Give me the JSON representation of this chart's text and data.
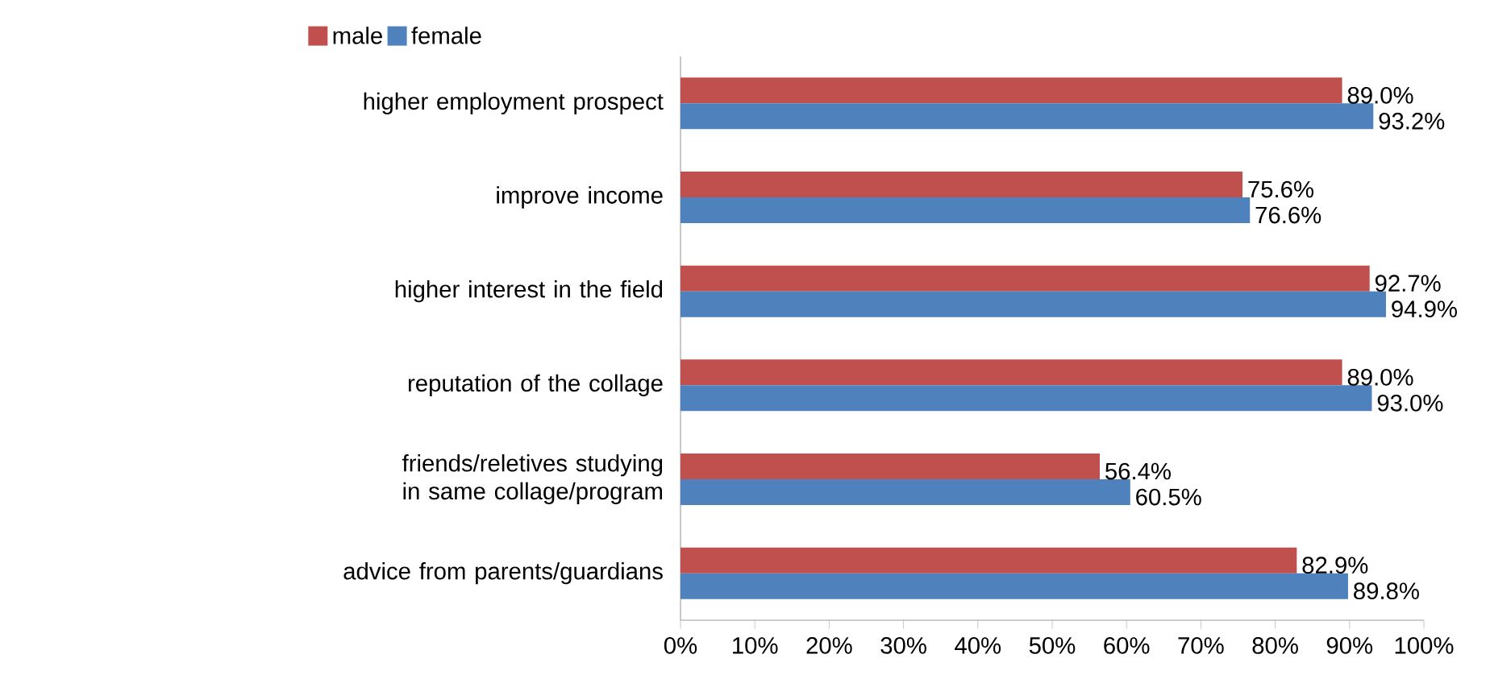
{
  "chart_data": {
    "type": "bar",
    "orientation": "horizontal",
    "categories": [
      "higher employment prospect",
      "improve income",
      "higher interest in the field",
      "reputation of the collage",
      "friends/reletives studying in  same collage/program",
      "advice from parents/guardians"
    ],
    "series": [
      {
        "name": "male",
        "color": "#c0504d",
        "values": [
          89.0,
          75.6,
          92.7,
          89.0,
          56.4,
          82.9
        ],
        "value_labels": [
          "89.0%",
          "75.6%",
          "92.7%",
          "89.0%",
          "56.4%",
          "82.9%"
        ]
      },
      {
        "name": "female",
        "color": "#4f81bd",
        "values": [
          93.2,
          76.6,
          94.9,
          93.0,
          60.5,
          89.8
        ],
        "value_labels": [
          "93.2%",
          "76.6%",
          "94.9%",
          "93.0%",
          "60.5%",
          "89.8%"
        ]
      }
    ],
    "xlim": [
      0,
      100
    ],
    "xticks": [
      {
        "value": 0,
        "label": "0%"
      },
      {
        "value": 10,
        "label": "10%"
      },
      {
        "value": 20,
        "label": "20%"
      },
      {
        "value": 30,
        "label": "30%"
      },
      {
        "value": 40,
        "label": "40%"
      },
      {
        "value": 50,
        "label": "50%"
      },
      {
        "value": 60,
        "label": "60%"
      },
      {
        "value": 70,
        "label": "70%"
      },
      {
        "value": 80,
        "label": "80%"
      },
      {
        "value": 90,
        "label": "90%"
      },
      {
        "value": 100,
        "label": "100%"
      }
    ],
    "legend": "top left"
  }
}
